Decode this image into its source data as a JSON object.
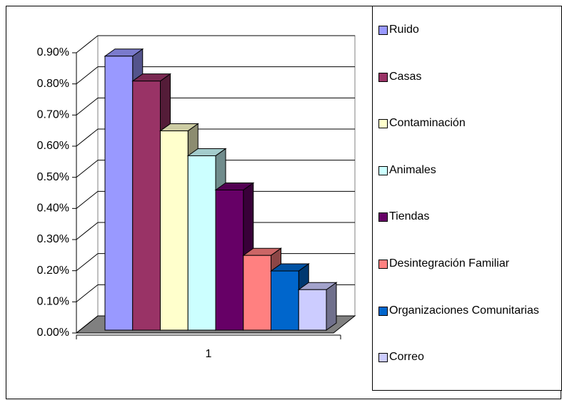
{
  "chart_data": {
    "type": "bar3d",
    "categories": [
      "1"
    ],
    "series": [
      {
        "name": "Ruido",
        "color": "#9999ff",
        "values": [
          0.88
        ]
      },
      {
        "name": "Casas",
        "color": "#993366",
        "values": [
          0.8
        ]
      },
      {
        "name": "Contaminación",
        "color": "#ffffcc",
        "values": [
          0.64
        ]
      },
      {
        "name": "Animales",
        "color": "#ccffff",
        "values": [
          0.56
        ]
      },
      {
        "name": "Tiendas",
        "color": "#660066",
        "values": [
          0.45
        ]
      },
      {
        "name": "Desintegración Familiar",
        "color": "#ff8080",
        "values": [
          0.24
        ]
      },
      {
        "name": "Organizaciones Comunitarias",
        "color": "#0066cc",
        "values": [
          0.19
        ]
      },
      {
        "name": "Correo",
        "color": "#ccccff",
        "values": [
          0.13
        ]
      }
    ],
    "ylim": [
      0,
      0.9
    ],
    "yticks": [
      {
        "value": 0,
        "label": "0.00%"
      },
      {
        "value": 0.1,
        "label": "0.10%"
      },
      {
        "value": 0.2,
        "label": "0.20%"
      },
      {
        "value": 0.3,
        "label": "0.30%"
      },
      {
        "value": 0.4,
        "label": "0.40%"
      },
      {
        "value": 0.5,
        "label": "0.50%"
      },
      {
        "value": 0.6,
        "label": "0.60%"
      },
      {
        "value": 0.7,
        "label": "0.70%"
      },
      {
        "value": 0.8,
        "label": "0.80%"
      },
      {
        "value": 0.9,
        "label": "0.90%"
      }
    ],
    "grid": true
  }
}
